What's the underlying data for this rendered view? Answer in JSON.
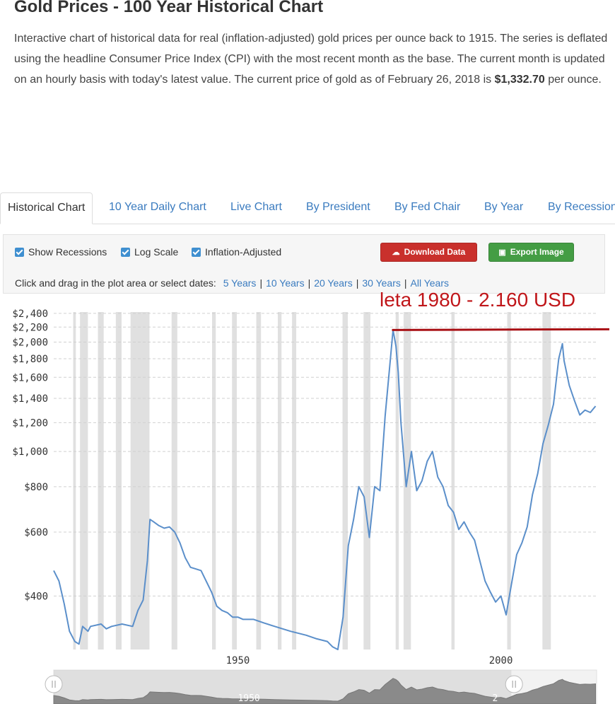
{
  "page": {
    "title": "Gold Prices - 100 Year Historical Chart",
    "description_pre": "Interactive chart of historical data for real (inflation-adjusted) gold prices per ounce back to 1915. The series is deflated using the headline Consumer Price Index (CPI) with the most recent month as the base. The current month is updated on an hourly basis with today's latest value. The current price of gold as of February 26, 2018 is ",
    "description_price": "$1,332.70",
    "description_post": " per ounce."
  },
  "tabs": [
    {
      "label": "Historical Chart",
      "active": true
    },
    {
      "label": "10 Year Daily Chart"
    },
    {
      "label": "Live Chart"
    },
    {
      "label": "By President"
    },
    {
      "label": "By Fed Chair"
    },
    {
      "label": "By Year"
    },
    {
      "label": "By Recession"
    }
  ],
  "toolbar": {
    "show_recessions": "Show Recessions",
    "log_scale": "Log Scale",
    "inflation_adjusted": "Inflation-Adjusted",
    "download_label": "Download Data",
    "export_label": "Export Image",
    "download_color": "#c9302c",
    "export_color": "#449d44",
    "dates_prompt": "Click and drag in the plot area or select dates:",
    "date_links": [
      "5 Years",
      "10 Years",
      "20 Years",
      "30 Years",
      "All Years"
    ]
  },
  "annotation": {
    "text": "leta 1980 - 2.160 USD",
    "color": "#c0161a",
    "value": 2160
  },
  "chart_data": {
    "type": "line",
    "y_scale": "log",
    "ylim": [
      285,
      2420
    ],
    "xlim": [
      1915,
      2018.2
    ],
    "y_ticks": [
      400,
      600,
      800,
      1000,
      1200,
      1400,
      1600,
      1800,
      2000,
      2200,
      2400
    ],
    "y_tick_labels": [
      "$400",
      "$600",
      "$800",
      "$1,000",
      "$1,200",
      "$1,400",
      "$1,600",
      "$1,800",
      "$2,000",
      "$2,200",
      "$2,400"
    ],
    "x_ticks": [
      1950,
      2000
    ],
    "x_tick_labels": [
      "1950",
      "2000"
    ],
    "grid": true,
    "line_color": "#5b8fca",
    "recession_color": "#e0e0e0",
    "recessions": [
      [
        1918.7,
        1919.2
      ],
      [
        1920.0,
        1921.5
      ],
      [
        1923.4,
        1924.5
      ],
      [
        1926.8,
        1927.9
      ],
      [
        1929.6,
        1933.2
      ],
      [
        1937.4,
        1938.5
      ],
      [
        1945.1,
        1945.8
      ],
      [
        1948.9,
        1949.8
      ],
      [
        1953.5,
        1954.4
      ],
      [
        1957.6,
        1958.3
      ],
      [
        1960.3,
        1961.1
      ],
      [
        1969.9,
        1970.9
      ],
      [
        1973.9,
        1975.2
      ],
      [
        1980.0,
        1980.6
      ],
      [
        1981.5,
        1982.9
      ],
      [
        1990.6,
        1991.2
      ],
      [
        2001.2,
        2001.9
      ],
      [
        2007.9,
        2009.5
      ]
    ],
    "series": [
      {
        "x": [
          1915,
          1916,
          1917,
          1918,
          1919,
          1919.8,
          1920.5,
          1921.5,
          1922,
          1924,
          1925,
          1926,
          1928,
          1930,
          1931,
          1932,
          1932.8,
          1933.3,
          1934,
          1935,
          1936,
          1937,
          1938,
          1939,
          1940,
          1941,
          1942,
          1943,
          1945,
          1946,
          1947,
          1948,
          1949,
          1950,
          1951,
          1952,
          1953,
          1955,
          1957,
          1960,
          1963,
          1965,
          1967,
          1968,
          1969,
          1970,
          1971,
          1972,
          1973,
          1974,
          1975,
          1976,
          1977,
          1978,
          1979,
          1979.5,
          1980.05,
          1980.5,
          1981,
          1982,
          1983,
          1984,
          1985,
          1986,
          1987,
          1988,
          1989,
          1990,
          1991,
          1992,
          1993,
          1994,
          1995,
          1996,
          1997,
          1998,
          1999,
          2000,
          2001,
          2002,
          2003,
          2004,
          2005,
          2006,
          2007,
          2008,
          2009,
          2010,
          2011,
          2011.7,
          2012,
          2013,
          2014,
          2015,
          2016,
          2017,
          2018
        ],
        "y": [
          470,
          440,
          380,
          320,
          300,
          295,
          330,
          320,
          330,
          335,
          325,
          330,
          335,
          330,
          365,
          390,
          500,
          650,
          640,
          625,
          615,
          620,
          600,
          560,
          510,
          480,
          475,
          470,
          410,
          375,
          365,
          360,
          350,
          350,
          345,
          345,
          345,
          337,
          330,
          320,
          312,
          305,
          300,
          290,
          285,
          350,
          550,
          650,
          800,
          750,
          580,
          800,
          780,
          1250,
          1800,
          2160,
          1950,
          1650,
          1200,
          800,
          1000,
          780,
          830,
          940,
          1000,
          850,
          800,
          710,
          680,
          610,
          640,
          600,
          570,
          500,
          440,
          410,
          385,
          400,
          355,
          430,
          520,
          560,
          620,
          760,
          870,
          1050,
          1180,
          1350,
          1800,
          1980,
          1780,
          1520,
          1380,
          1260,
          1300,
          1280,
          1332.7
        ]
      }
    ]
  },
  "navigator": {
    "labels": [
      "1950",
      "2"
    ]
  }
}
